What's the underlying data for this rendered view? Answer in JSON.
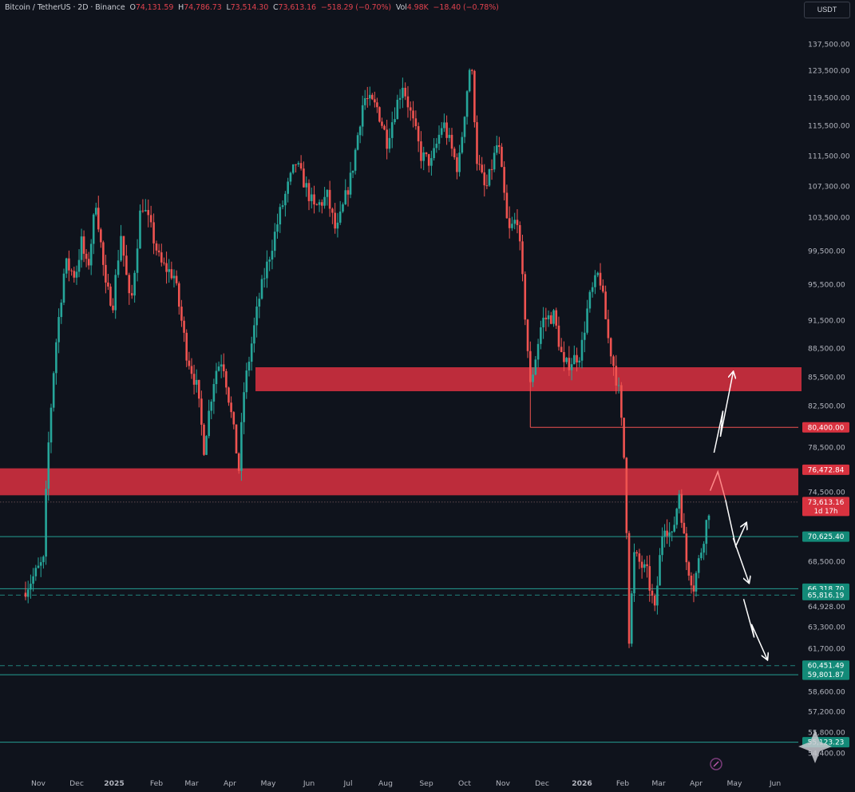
{
  "header": {
    "symbol": "Bitcoin / TetherUS · 2D · Binance",
    "open_label": "O",
    "open_value": "74,131.59",
    "high_label": "H",
    "high_value": "74,786.73",
    "low_label": "L",
    "low_value": "73,514.30",
    "close_label": "C",
    "close_value": "73,613.16",
    "change": "−518.29 (−0.70%)",
    "vol_label": "Vol",
    "vol_value": "4.98K",
    "vol_change": "−18.40 (−0.78%)"
  },
  "currency_button": "USDT",
  "colors": {
    "background": "#0f131c",
    "up": "#26a69a",
    "down": "#ef5350",
    "zone": "#cc2f3e",
    "support": "#26a69a",
    "resistance": "#ef5350",
    "arrows": "#ffffff",
    "axis_text": "#b2b5be"
  },
  "chart_data": {
    "type": "candlestick",
    "title": "",
    "xlabel": "",
    "ylabel": "",
    "ylim": [
      53500,
      139500
    ],
    "y_ticks": [
      "137,500.00",
      "123,500.00",
      "119,500.00",
      "115,500.00",
      "111,500.00",
      "107,300.00",
      "103,500.00",
      "99,500.00",
      "95,500.00",
      "91,500.00",
      "88,500.00",
      "85,500.00",
      "82,500.00",
      "78,500.00",
      "74,500.00",
      "68,500.00",
      "64,928.00",
      "63,300.00",
      "61,700.00",
      "58,600.00",
      "57,200.00",
      "55,800.00",
      "54,400.00"
    ],
    "x_ticks": [
      "Nov",
      "Dec",
      "2025",
      "Feb",
      "Mar",
      "Apr",
      "May",
      "Jun",
      "Jul",
      "Aug",
      "Sep",
      "Oct",
      "Nov",
      "Dec",
      "2026",
      "Feb",
      "Mar",
      "Apr",
      "May",
      "Jun"
    ],
    "price_path": [
      [
        "2024-10-20",
        66000
      ],
      [
        "2024-11-05",
        68500
      ],
      [
        "2024-11-08",
        77000
      ],
      [
        "2024-11-14",
        88000
      ],
      [
        "2024-11-22",
        98000
      ],
      [
        "2024-11-30",
        96500
      ],
      [
        "2024-12-05",
        100500
      ],
      [
        "2024-12-10",
        97000
      ],
      [
        "2024-12-17",
        105500
      ],
      [
        "2024-12-25",
        95000
      ],
      [
        "2024-12-31",
        93500
      ],
      [
        "2025-01-06",
        101500
      ],
      [
        "2025-01-13",
        92500
      ],
      [
        "2025-01-21",
        105500
      ],
      [
        "2025-01-28",
        102000
      ],
      [
        "2025-02-04",
        98000
      ],
      [
        "2025-02-15",
        96500
      ],
      [
        "2025-02-25",
        88000
      ],
      [
        "2025-03-05",
        84500
      ],
      [
        "2025-03-11",
        78500
      ],
      [
        "2025-03-20",
        86000
      ],
      [
        "2025-03-26",
        87500
      ],
      [
        "2025-04-01",
        82500
      ],
      [
        "2025-04-08",
        76500
      ],
      [
        "2025-04-12",
        84000
      ],
      [
        "2025-04-24",
        94000
      ],
      [
        "2025-05-10",
        104000
      ],
      [
        "2025-05-22",
        110500
      ],
      [
        "2025-06-05",
        104500
      ],
      [
        "2025-06-15",
        106000
      ],
      [
        "2025-06-22",
        101500
      ],
      [
        "2025-07-04",
        109000
      ],
      [
        "2025-07-14",
        119500
      ],
      [
        "2025-07-25",
        118000
      ],
      [
        "2025-08-02",
        113500
      ],
      [
        "2025-08-14",
        121500
      ],
      [
        "2025-08-28",
        111500
      ],
      [
        "2025-09-05",
        110500
      ],
      [
        "2025-09-14",
        116000
      ],
      [
        "2025-09-26",
        109500
      ],
      [
        "2025-10-06",
        125500
      ],
      [
        "2025-10-11",
        111000
      ],
      [
        "2025-10-18",
        106500
      ],
      [
        "2025-10-28",
        113500
      ],
      [
        "2025-11-05",
        101500
      ],
      [
        "2025-11-12",
        103500
      ],
      [
        "2025-11-22",
        84500
      ],
      [
        "2025-12-01",
        91500
      ],
      [
        "2025-12-10",
        92000
      ],
      [
        "2025-12-18",
        86500
      ],
      [
        "2025-12-31",
        88000
      ],
      [
        "2026-01-06",
        93500
      ],
      [
        "2026-01-14",
        97000
      ],
      [
        "2026-01-21",
        89500
      ],
      [
        "2026-01-29",
        84000
      ],
      [
        "2026-02-03",
        76000
      ],
      [
        "2026-02-06",
        62500
      ],
      [
        "2026-02-10",
        69000
      ],
      [
        "2026-02-20",
        67500
      ],
      [
        "2026-02-26",
        64500
      ],
      [
        "2026-03-05",
        72000
      ],
      [
        "2026-03-12",
        70500
      ],
      [
        "2026-03-18",
        74500
      ],
      [
        "2026-03-24",
        68500
      ],
      [
        "2026-03-30",
        66500
      ],
      [
        "2026-04-05",
        69500
      ],
      [
        "2026-04-12",
        73613
      ]
    ],
    "zones": [
      {
        "from": 84000,
        "to": 86500
      },
      {
        "from": 74200,
        "to": 76600
      }
    ],
    "levels": [
      {
        "value": 80400,
        "label": "80,400.00",
        "kind": "resistance",
        "start": "2025-11-22"
      },
      {
        "value": 76472.84,
        "label": "76,472.84",
        "kind": "zone"
      },
      {
        "value": 73613.16,
        "label": "73,613.16",
        "sub": "1d 17h",
        "kind": "last",
        "dotted": true
      },
      {
        "value": 70625.4,
        "label": "70,625.40",
        "kind": "support"
      },
      {
        "value": 66318.7,
        "label": "66,318.70",
        "kind": "support"
      },
      {
        "value": 65816.19,
        "label": "65,816.19",
        "kind": "support",
        "dashed": true
      },
      {
        "value": 60451.49,
        "label": "60,451.49",
        "kind": "support",
        "dashed": true
      },
      {
        "value": 59801.87,
        "label": "59,801.87",
        "kind": "support"
      },
      {
        "value": 55123.23,
        "label": "55,123.23",
        "kind": "support"
      }
    ],
    "projection_scenarios": [
      [
        [
          "2026-04-12",
          74600
        ],
        [
          "2026-04-18",
          76300
        ],
        [
          "2026-04-24",
          73800
        ]
      ],
      [
        [
          "2026-04-15",
          78000
        ],
        [
          "2026-04-22",
          82000
        ],
        [
          "2026-04-20",
          79500
        ],
        [
          "2026-04-30",
          86000
        ]
      ],
      [
        [
          "2026-04-24",
          73800
        ],
        [
          "2026-05-02",
          69800
        ],
        [
          "2026-05-10",
          71800
        ]
      ],
      [
        [
          "2026-04-30",
          70500
        ],
        [
          "2026-05-12",
          66800
        ]
      ],
      [
        [
          "2026-05-08",
          65500
        ],
        [
          "2026-05-16",
          62500
        ],
        [
          "2026-05-14",
          63500
        ],
        [
          "2026-05-26",
          60900
        ]
      ]
    ]
  }
}
